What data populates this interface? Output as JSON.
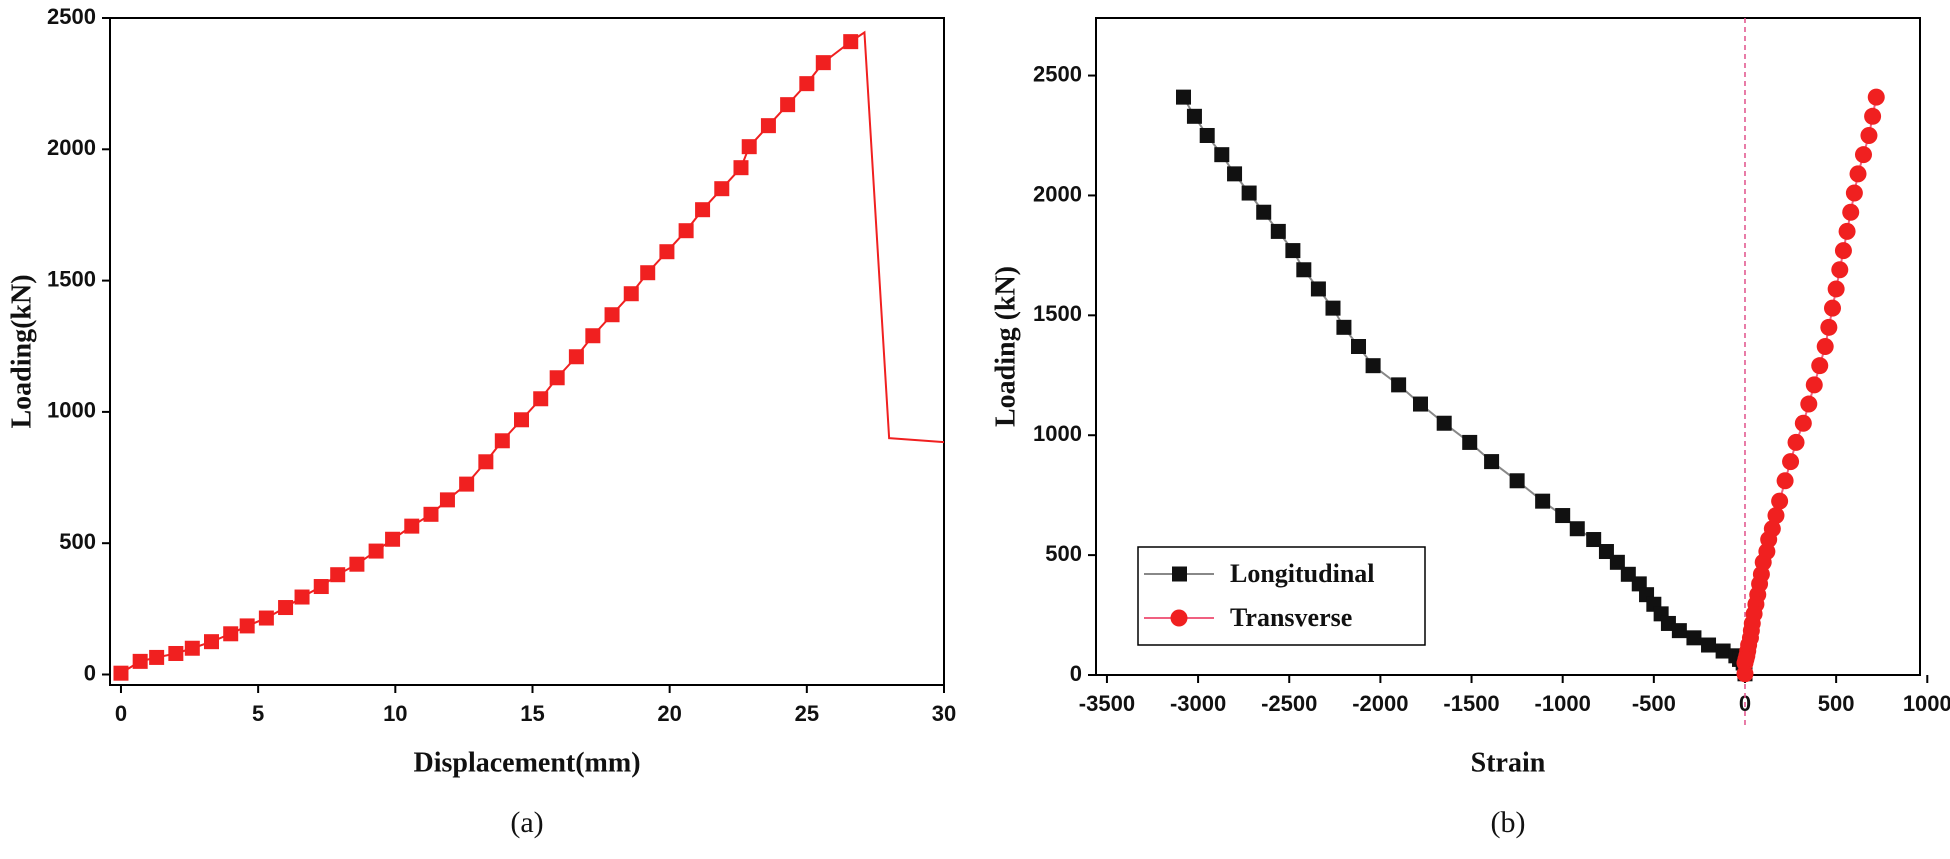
{
  "chart_data": [
    {
      "type": "line",
      "caption": "(a)",
      "xlabel": "Displacement(mm)",
      "ylabel": "Loading(kN)",
      "xlim": [
        -0.4,
        30
      ],
      "ylim": [
        -40,
        2500
      ],
      "xticks": [
        0,
        5,
        10,
        15,
        20,
        25,
        30
      ],
      "yticks": [
        0,
        500,
        1000,
        1500,
        2000,
        2500
      ],
      "series": [
        {
          "color": "#f02020",
          "marker": "square",
          "x": [
            0,
            0.7,
            1.3,
            2,
            2.6,
            3.3,
            4,
            4.6,
            5.3,
            6,
            6.6,
            7.3,
            7.9,
            8.6,
            9.3,
            9.9,
            10.6,
            11.3,
            11.9,
            12.6,
            13.3,
            13.9,
            14.6,
            15.3,
            15.9,
            16.6,
            17.2,
            17.9,
            18.6,
            19.2,
            19.9,
            20.6,
            21.2,
            21.9,
            22.6,
            22.9,
            23.6,
            24.3,
            25,
            25.6,
            26.6
          ],
          "values": [
            5,
            50,
            65,
            80,
            100,
            125,
            155,
            185,
            215,
            255,
            295,
            335,
            380,
            420,
            470,
            515,
            565,
            610,
            665,
            725,
            810,
            890,
            970,
            1050,
            1130,
            1210,
            1290,
            1370,
            1450,
            1530,
            1610,
            1690,
            1770,
            1850,
            1930,
            2010,
            2090,
            2170,
            2250,
            2330,
            2410
          ]
        },
        {
          "color": "#f02020",
          "marker": "none",
          "x": [
            26.6,
            27.1,
            28,
            30
          ],
          "values": [
            2410,
            2445,
            900,
            885
          ]
        }
      ]
    },
    {
      "type": "line",
      "caption": "(b)",
      "xlabel": "Strain",
      "ylabel": "Loading (kN)",
      "xlim": [
        -3560,
        960
      ],
      "ylim": [
        0,
        2740
      ],
      "xticks": [
        -3500,
        -3000,
        -2500,
        -2000,
        -1500,
        -1000,
        -500,
        0,
        500,
        1000
      ],
      "yticks": [
        0,
        500,
        1000,
        1500,
        2000,
        2500
      ],
      "legend": "lower left",
      "reference_line": {
        "x": 0,
        "color": "#e0508a",
        "style": "dashed"
      },
      "series": [
        {
          "name": "Longitudinal",
          "color": "#111111",
          "line_color": "#888888",
          "marker": "square",
          "x": [
            -3080,
            -3020,
            -2950,
            -2870,
            -2800,
            -2720,
            -2640,
            -2560,
            -2480,
            -2420,
            -2340,
            -2260,
            -2200,
            -2120,
            -2040,
            -1900,
            -1780,
            -1650,
            -1510,
            -1390,
            -1250,
            -1110,
            -1000,
            -920,
            -830,
            -760,
            -700,
            -640,
            -580,
            -540,
            -500,
            -460,
            -420,
            -360,
            -280,
            -200,
            -120,
            -50,
            -30,
            -10,
            0
          ],
          "values": [
            2410,
            2330,
            2250,
            2170,
            2090,
            2010,
            1930,
            1850,
            1770,
            1690,
            1610,
            1530,
            1450,
            1370,
            1290,
            1210,
            1130,
            1050,
            970,
            890,
            810,
            725,
            665,
            610,
            565,
            515,
            470,
            420,
            380,
            335,
            295,
            255,
            215,
            185,
            155,
            125,
            100,
            80,
            65,
            50,
            5
          ]
        },
        {
          "name": "Transverse",
          "color": "#f02020",
          "line_color": "#f06080",
          "marker": "circle",
          "x": [
            720,
            700,
            680,
            650,
            620,
            600,
            580,
            560,
            540,
            520,
            500,
            480,
            460,
            440,
            410,
            380,
            350,
            320,
            280,
            250,
            220,
            190,
            170,
            150,
            130,
            120,
            100,
            90,
            80,
            70,
            60,
            50,
            40,
            35,
            30,
            20,
            15,
            10,
            5,
            0,
            0
          ],
          "values": [
            2410,
            2330,
            2250,
            2170,
            2090,
            2010,
            1930,
            1850,
            1770,
            1690,
            1610,
            1530,
            1450,
            1370,
            1290,
            1210,
            1130,
            1050,
            970,
            890,
            810,
            725,
            665,
            610,
            565,
            515,
            470,
            420,
            380,
            335,
            295,
            255,
            215,
            185,
            155,
            125,
            100,
            80,
            65,
            50,
            5
          ]
        }
      ]
    }
  ]
}
